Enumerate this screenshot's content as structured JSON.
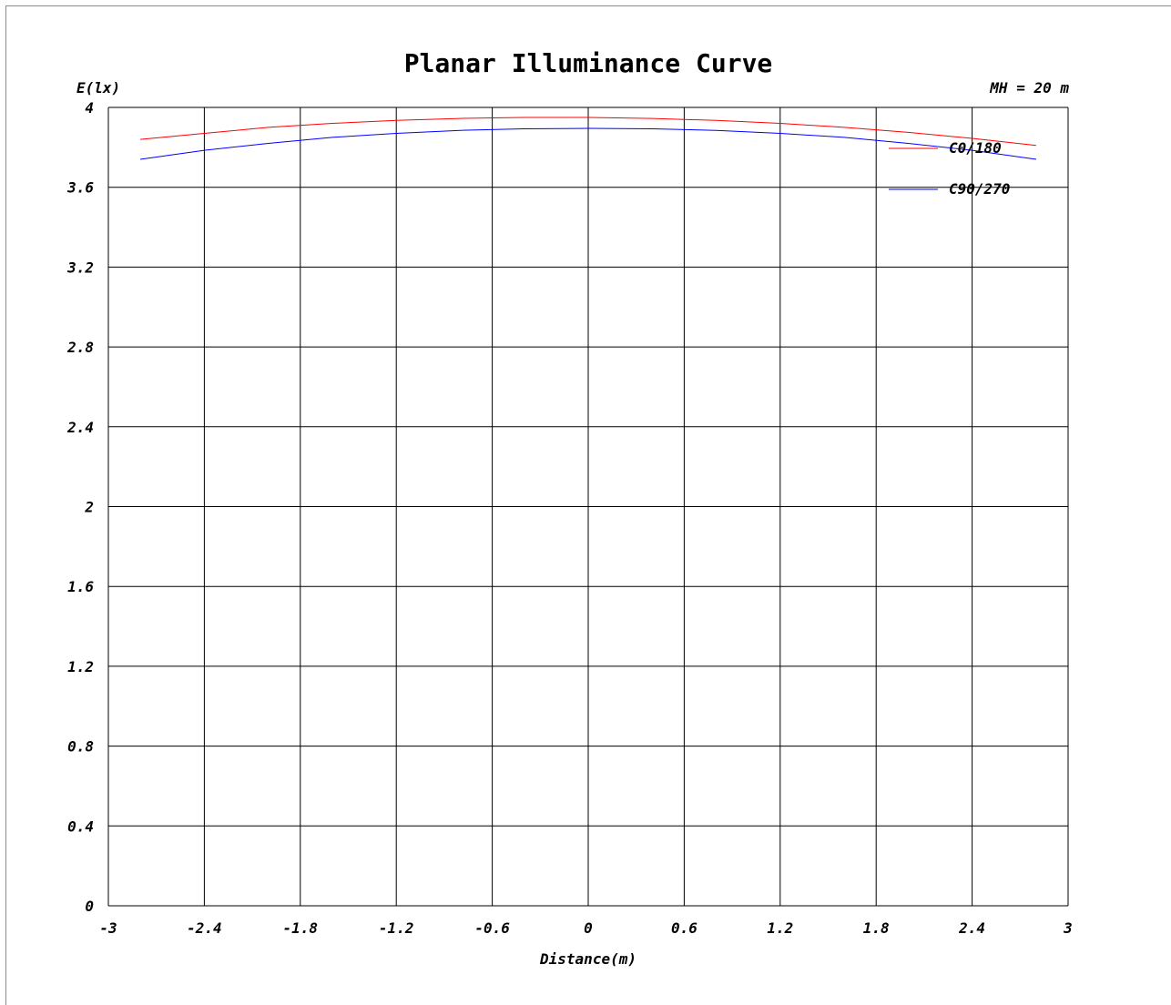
{
  "chart_data": {
    "type": "line",
    "title": "Planar Illuminance Curve",
    "ylabel": "E(lx)",
    "xlabel": "Distance(m)",
    "annotation": "MH = 20 m",
    "xlim": [
      -3,
      3
    ],
    "ylim": [
      0,
      4
    ],
    "x_ticks": [
      "-3",
      "-2.4",
      "-1.8",
      "-1.2",
      "-0.6",
      "0",
      "0.6",
      "1.2",
      "1.8",
      "2.4",
      "3"
    ],
    "y_ticks": [
      "0",
      "0.4",
      "0.8",
      "1.2",
      "1.6",
      "2",
      "2.4",
      "2.8",
      "3.2",
      "3.6",
      "4"
    ],
    "grid": true,
    "legend_position": "top-right",
    "series": [
      {
        "name": "C0/180",
        "color": "#ff0000",
        "x": [
          -2.8,
          -2.4,
          -2.0,
          -1.6,
          -1.2,
          -0.8,
          -0.4,
          -0.2,
          0.0,
          0.4,
          0.8,
          1.2,
          1.6,
          2.0,
          2.4,
          2.8
        ],
        "y": [
          3.84,
          3.87,
          3.9,
          3.92,
          3.935,
          3.945,
          3.95,
          3.95,
          3.95,
          3.945,
          3.935,
          3.92,
          3.9,
          3.875,
          3.845,
          3.81
        ]
      },
      {
        "name": "C90/270",
        "color": "#0000ff",
        "x": [
          -2.8,
          -2.4,
          -2.0,
          -1.6,
          -1.2,
          -0.8,
          -0.4,
          0.0,
          0.4,
          0.8,
          1.2,
          1.6,
          2.0,
          2.4,
          2.8
        ],
        "y": [
          3.74,
          3.785,
          3.82,
          3.85,
          3.87,
          3.885,
          3.893,
          3.895,
          3.893,
          3.885,
          3.87,
          3.85,
          3.82,
          3.785,
          3.74
        ]
      }
    ]
  }
}
